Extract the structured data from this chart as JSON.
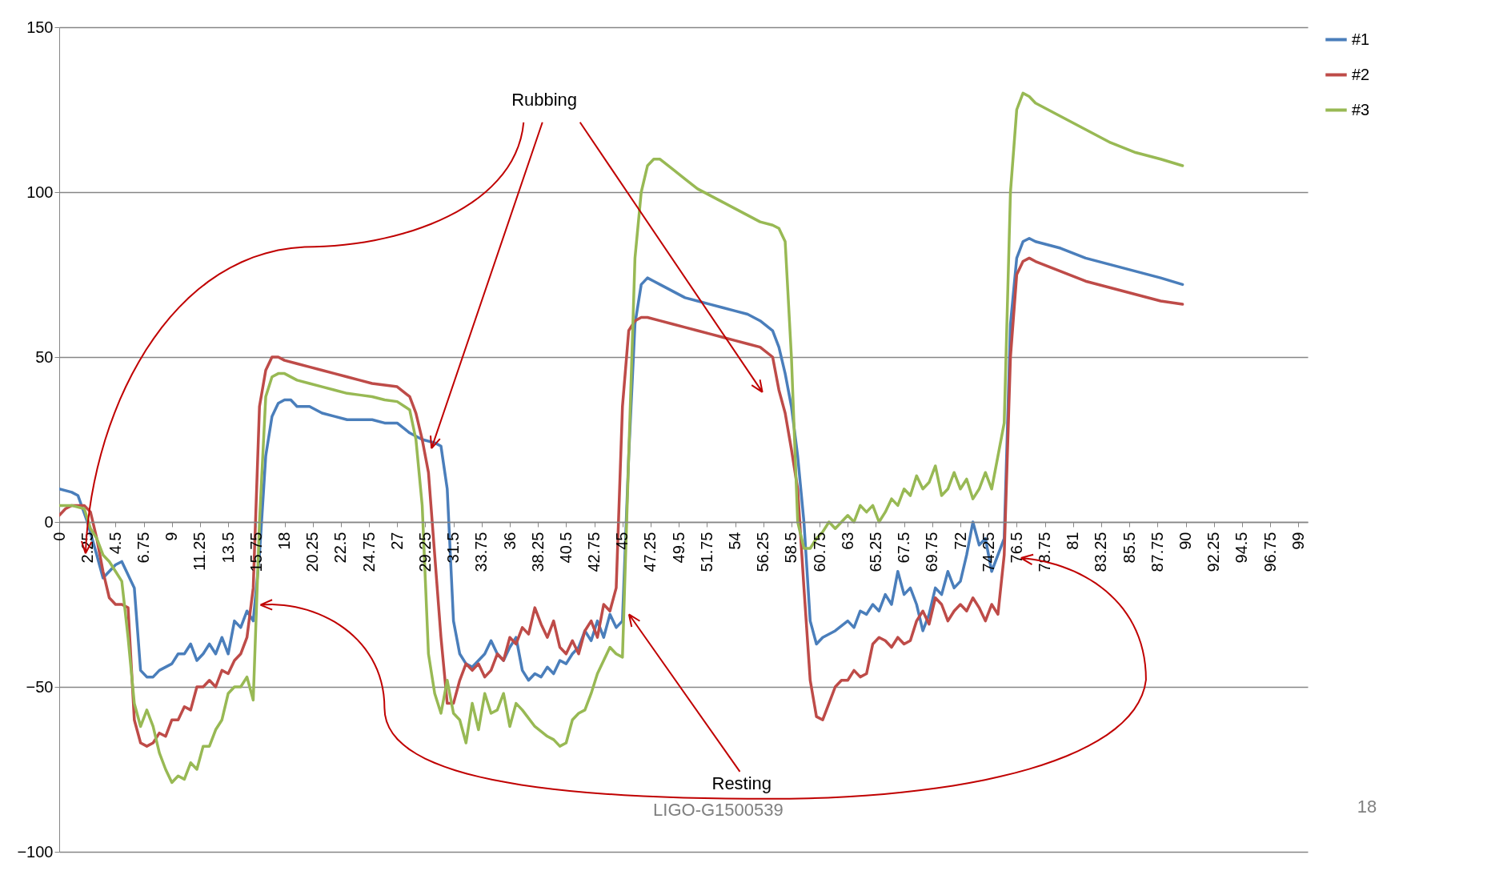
{
  "chart_data": {
    "type": "line",
    "xlim": [
      0,
      99.75
    ],
    "ylim": [
      -100,
      150
    ],
    "xticks": [
      0,
      2.25,
      4.5,
      6.75,
      9,
      11.25,
      13.5,
      15.75,
      18,
      20.25,
      22.5,
      24.75,
      27,
      29.25,
      31.5,
      33.75,
      36,
      38.25,
      40.5,
      42.75,
      45,
      47.25,
      49.5,
      51.75,
      54,
      56.25,
      58.5,
      60.75,
      63,
      65.25,
      67.5,
      69.75,
      72,
      74.25,
      76.5,
      78.75,
      81,
      83.25,
      85.5,
      87.75,
      90,
      92.25,
      94.5,
      96.75,
      99
    ],
    "yticks": [
      -100,
      -50,
      0,
      50,
      100,
      150
    ],
    "grid": "y",
    "legend": "right",
    "marker": "none",
    "line_style": "solid",
    "annotations": [
      "Rubbing",
      "Resting",
      "LIGO-G1500539",
      "18"
    ],
    "series": [
      {
        "name": "#1",
        "color": "#4a7ebb",
        "x": [
          0,
          1,
          1.5,
          2.25,
          3,
          3.5,
          4.5,
          5,
          6,
          6.5,
          7,
          7.5,
          8,
          9,
          9.5,
          10,
          10.5,
          11,
          11.5,
          12,
          12.5,
          13,
          13.5,
          14,
          14.5,
          15,
          15.5,
          16,
          16.5,
          17,
          17.5,
          18,
          18.5,
          19,
          20,
          21,
          22,
          23,
          24,
          25,
          26,
          27,
          28,
          29,
          30,
          30.5,
          31,
          31.5,
          32,
          32.5,
          33,
          33.5,
          34,
          34.5,
          35,
          35.5,
          36,
          36.5,
          37,
          37.5,
          38,
          38.5,
          39,
          39.5,
          40,
          40.5,
          41,
          41.5,
          42,
          42.5,
          43,
          43.5,
          44,
          44.5,
          45,
          45.5,
          46,
          46.5,
          47,
          47.5,
          48,
          49,
          50,
          51,
          52,
          53,
          54,
          55,
          56,
          57,
          57.5,
          58,
          58.5,
          59,
          59.5,
          60,
          60.5,
          61,
          62,
          63,
          63.5,
          64,
          64.5,
          65,
          65.5,
          66,
          66.5,
          67,
          67.5,
          68,
          68.5,
          69,
          69.5,
          70,
          70.5,
          71,
          71.5,
          72,
          72.5,
          73,
          73.5,
          74,
          74.5,
          75,
          75.5,
          76,
          76.5,
          77,
          77.5,
          78,
          80,
          82,
          84,
          86,
          88,
          89.75
        ],
        "values": [
          10,
          9,
          8,
          0,
          -10,
          -17,
          -13,
          -12,
          -20,
          -45,
          -47,
          -47,
          -45,
          -43,
          -40,
          -40,
          -37,
          -42,
          -40,
          -37,
          -40,
          -35,
          -40,
          -30,
          -32,
          -27,
          -30,
          -10,
          20,
          32,
          36,
          37,
          37,
          35,
          35,
          33,
          32,
          31,
          31,
          31,
          30,
          30,
          27,
          25,
          24,
          23,
          10,
          -30,
          -40,
          -43,
          -44,
          -42,
          -40,
          -36,
          -40,
          -42,
          -38,
          -35,
          -45,
          -48,
          -46,
          -47,
          -44,
          -46,
          -42,
          -43,
          -40,
          -38,
          -33,
          -36,
          -30,
          -35,
          -28,
          -32,
          -30,
          20,
          60,
          72,
          74,
          73,
          72,
          70,
          68,
          67,
          66,
          65,
          64,
          63,
          61,
          58,
          53,
          45,
          35,
          20,
          0,
          -30,
          -37,
          -35,
          -33,
          -30,
          -32,
          -27,
          -28,
          -25,
          -27,
          -22,
          -25,
          -15,
          -22,
          -20,
          -25,
          -33,
          -28,
          -20,
          -22,
          -15,
          -20,
          -18,
          -10,
          0,
          -7,
          -5,
          -15,
          -10,
          -5,
          60,
          80,
          85,
          86,
          85,
          83,
          80,
          78,
          76,
          74,
          72
        ]
      },
      {
        "name": "#2",
        "color": "#be4b48",
        "x": [
          0,
          0.5,
          1,
          2,
          2.5,
          3,
          3.5,
          4,
          4.5,
          5,
          5.5,
          6,
          6.5,
          7,
          7.5,
          8,
          8.5,
          9,
          9.5,
          10,
          10.5,
          11,
          11.5,
          12,
          12.5,
          13,
          13.5,
          14,
          14.5,
          15,
          15.5,
          16,
          16.5,
          17,
          17.5,
          18,
          19,
          20,
          21,
          22,
          23,
          24,
          25,
          26,
          27,
          28,
          28.5,
          29,
          29.5,
          30,
          30.5,
          31,
          31.5,
          32,
          32.5,
          33,
          33.5,
          34,
          34.5,
          35,
          35.5,
          36,
          36.5,
          37,
          37.5,
          38,
          38.5,
          39,
          39.5,
          40,
          40.5,
          41,
          41.5,
          42,
          42.5,
          43,
          43.5,
          44,
          44.5,
          45,
          45.5,
          46,
          46.5,
          47,
          48,
          49,
          50,
          51,
          52,
          53,
          54,
          55,
          56,
          57,
          57.5,
          58,
          58.5,
          59,
          59.5,
          60,
          60.5,
          61,
          61.5,
          62,
          62.5,
          63,
          63.5,
          64,
          64.5,
          65,
          65.5,
          66,
          66.5,
          67,
          67.5,
          68,
          68.5,
          69,
          69.5,
          70,
          70.5,
          71,
          71.5,
          72,
          72.5,
          73,
          73.5,
          74,
          74.5,
          75,
          75.5,
          76,
          76.5,
          77,
          77.5,
          78,
          80,
          82,
          84,
          86,
          88,
          89.75
        ],
        "values": [
          2,
          4,
          5,
          5,
          3,
          -5,
          -15,
          -23,
          -25,
          -25,
          -26,
          -60,
          -67,
          -68,
          -67,
          -64,
          -65,
          -60,
          -60,
          -56,
          -57,
          -50,
          -50,
          -48,
          -50,
          -45,
          -46,
          -42,
          -40,
          -35,
          -20,
          35,
          46,
          50,
          50,
          49,
          48,
          47,
          46,
          45,
          44,
          43,
          42,
          41.5,
          41,
          38,
          33,
          25,
          15,
          -10,
          -35,
          -55,
          -55,
          -48,
          -43,
          -45,
          -43,
          -47,
          -45,
          -40,
          -42,
          -35,
          -37,
          -32,
          -34,
          -26,
          -31,
          -35,
          -30,
          -38,
          -40,
          -36,
          -40,
          -33,
          -30,
          -35,
          -25,
          -27,
          -20,
          35,
          58,
          61,
          62,
          62,
          61,
          60,
          59,
          58,
          57,
          56,
          55,
          54,
          53,
          50,
          40,
          33,
          22,
          10,
          -20,
          -48,
          -59,
          -60,
          -55,
          -50,
          -48,
          -48,
          -45,
          -47,
          -46,
          -37,
          -35,
          -36,
          -38,
          -35,
          -37,
          -36,
          -30,
          -27,
          -31,
          -23,
          -25,
          -30,
          -27,
          -25,
          -27,
          -23,
          -26,
          -30,
          -25,
          -28,
          -10,
          50,
          75,
          79,
          80,
          79,
          76,
          73,
          71,
          69,
          67,
          66
        ]
      },
      {
        "name": "#3",
        "color": "#98b954",
        "x": [
          0,
          1,
          2,
          2.5,
          3,
          3.5,
          4,
          4.5,
          5,
          5.5,
          6,
          6.5,
          7,
          7.5,
          8,
          8.5,
          9,
          9.5,
          10,
          10.5,
          11,
          11.5,
          12,
          12.5,
          13,
          13.5,
          14,
          14.5,
          15,
          15.5,
          16,
          16.5,
          17,
          17.5,
          18,
          19,
          20,
          21,
          22,
          23,
          24,
          25,
          26,
          27,
          28,
          28.5,
          29,
          29.5,
          30,
          30.5,
          31,
          31.5,
          32,
          32.5,
          33,
          33.5,
          34,
          34.5,
          35,
          35.5,
          36,
          36.5,
          37,
          38,
          39,
          39.5,
          40,
          40.5,
          41,
          41.5,
          42,
          42.5,
          43,
          43.5,
          44,
          44.5,
          45,
          45.5,
          46,
          46.5,
          47,
          47.5,
          48,
          49,
          50,
          51,
          52,
          53,
          54,
          55,
          56,
          57,
          57.5,
          58,
          58.5,
          59,
          59.5,
          60,
          60.5,
          61,
          61.5,
          62,
          62.5,
          63,
          63.5,
          64,
          64.5,
          65,
          65.5,
          66,
          66.5,
          67,
          67.5,
          68,
          68.5,
          69,
          69.5,
          70,
          70.5,
          71,
          71.5,
          72,
          72.5,
          73,
          73.5,
          74,
          74.5,
          75,
          75.5,
          76,
          76.5,
          77,
          77.5,
          78,
          80,
          82,
          84,
          86,
          88,
          89.75
        ],
        "values": [
          5,
          5,
          4,
          -2,
          -5,
          -10,
          -12,
          -15,
          -18,
          -35,
          -55,
          -62,
          -57,
          -62,
          -70,
          -75,
          -79,
          -77,
          -78,
          -73,
          -75,
          -68,
          -68,
          -63,
          -60,
          -52,
          -50,
          -50,
          -47,
          -54,
          0,
          38,
          44,
          45,
          45,
          43,
          42,
          41,
          40,
          39,
          38.5,
          38,
          37,
          36.5,
          34,
          25,
          5,
          -40,
          -52,
          -58,
          -48,
          -58,
          -60,
          -67,
          -55,
          -63,
          -52,
          -58,
          -57,
          -52,
          -62,
          -55,
          -57,
          -62,
          -65,
          -66,
          -68,
          -67,
          -60,
          -58,
          -57,
          -52,
          -46,
          -42,
          -38,
          -40,
          -41,
          20,
          80,
          100,
          108,
          110,
          110,
          107,
          104,
          101,
          99,
          97,
          95,
          93,
          91,
          90,
          89,
          85,
          50,
          0,
          -8,
          -8,
          -5,
          -3,
          0,
          -2,
          0,
          2,
          0,
          5,
          3,
          5,
          0,
          3,
          7,
          5,
          10,
          8,
          14,
          10,
          12,
          17,
          8,
          10,
          15,
          10,
          13,
          7,
          10,
          15,
          10,
          20,
          30,
          100,
          125,
          130,
          129,
          127,
          123,
          119,
          115,
          112,
          110,
          108
        ]
      }
    ]
  }
}
